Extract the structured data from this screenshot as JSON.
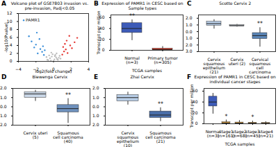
{
  "chart_data": [
    {
      "type": "scatter",
      "label": "A",
      "title": "Volcano plot of GSE7803 invasion vs. pre-invasion, Padj<0.05",
      "xlabel": "log2(fold change)",
      "ylabel": "-log10(Pvalue)",
      "xlim": [
        -4,
        4
      ],
      "xticks": [
        -4,
        -2,
        0,
        2,
        4
      ],
      "ylim": [
        0,
        12
      ],
      "yticks": [
        0,
        2,
        4,
        6,
        8,
        10,
        12
      ],
      "series": [
        {
          "color": "#bdbdbd",
          "x": [
            -0.6,
            -0.4,
            -0.2,
            0.1,
            0.3,
            0.5,
            0.7,
            -0.8,
            -0.3,
            0.2,
            0.6,
            -0.5,
            0.4,
            0.0,
            -0.1,
            0.8,
            -0.7,
            0.35,
            -0.25,
            0.15
          ],
          "y": [
            0.3,
            0.8,
            1.2,
            0.5,
            1.0,
            0.4,
            1.4,
            1.1,
            0.2,
            1.6,
            0.9,
            1.5,
            0.6,
            0.1,
            1.8,
            0.7,
            0.4,
            2.0,
            2.2,
            1.3
          ]
        },
        {
          "color": "#3b8fd9",
          "x": [
            -1.1,
            -1.3,
            -1.5,
            -1.8,
            -2.0,
            -2.2,
            -2.5,
            -1.2,
            -1.6,
            -2.8,
            -1.0,
            -1.9,
            -3.4
          ],
          "y": [
            1.6,
            2.4,
            3.1,
            2.0,
            4.2,
            3.5,
            5.0,
            3.8,
            5.6,
            6.3,
            2.8,
            7.2,
            10.3
          ]
        },
        {
          "color": "#e53935",
          "x": [
            1.0,
            1.2,
            1.4,
            1.6,
            1.9,
            2.1,
            2.4,
            1.1,
            1.5,
            2.7,
            1.3,
            1.8
          ],
          "y": [
            1.7,
            2.5,
            3.0,
            2.1,
            4.0,
            3.3,
            4.8,
            3.6,
            5.2,
            5.9,
            4.4,
            6.4
          ]
        }
      ],
      "annotations": [
        {
          "text": "PAMR1",
          "x": -3.4,
          "y": 10.3
        }
      ]
    },
    {
      "type": "box",
      "label": "B",
      "title": "Expression of PAMR1 in CESC based on Sample types",
      "xlabel": "TCGA samples",
      "ylabel": "Transcript per million",
      "categories": [
        "Normal\n(n=3)",
        "Primary tumor\n(n=305)"
      ],
      "boxes": [
        {
          "min": 18,
          "q1": 32,
          "median": 40,
          "q3": 50,
          "max": 56
        },
        {
          "min": 0,
          "q1": 0.5,
          "median": 1.5,
          "q3": 3,
          "max": 7
        }
      ],
      "colors": [
        "#3d5bb8",
        "#e8331f"
      ],
      "ylim": [
        0,
        65
      ],
      "yticks": [
        0,
        20,
        40,
        60
      ],
      "annotations": [
        {
          "text": "**",
          "category": "Normal\n(n=3)"
        }
      ]
    },
    {
      "type": "box",
      "label": "C",
      "title": "Scotto Cervix 2",
      "categories": [
        "Cervix squamous epithelium (21)",
        "Cervix uteri (2)",
        "Cervical squamous cell carcinoma (32)"
      ],
      "boxes": [
        {
          "min": 0.4,
          "q1": 0.9,
          "median": 1.2,
          "q3": 1.5,
          "max": 1.8
        },
        {
          "min": 0.7,
          "q1": 0.8,
          "median": 0.9,
          "q3": 1.0,
          "max": 1.1
        },
        {
          "min": -2.3,
          "q1": -1.1,
          "median": -0.6,
          "q3": -0.2,
          "max": 0.6
        }
      ],
      "colors": [
        "#b8cde6",
        "#d6dfea",
        "#5b86b8"
      ],
      "ylim": [
        -3,
        2.5
      ],
      "yticks": [
        -3,
        -2,
        -1,
        0,
        1,
        2
      ],
      "annotations": [
        {
          "text": "**",
          "category": "Cervical squamous cell carcinoma (32)"
        }
      ]
    },
    {
      "type": "box",
      "label": "D",
      "title": "Biewenga Cervix",
      "categories": [
        "Cervix uteri (5)",
        "Squamous cell carcinoma (40)"
      ],
      "boxes": [
        {
          "min": 0.6,
          "q1": 1.0,
          "median": 1.4,
          "q3": 1.6,
          "max": 1.8
        },
        {
          "min": -1.8,
          "q1": -0.6,
          "median": -0.2,
          "q3": 0.2,
          "max": 0.9
        }
      ],
      "colors": [
        "#c9d6e6",
        "#6f91bd"
      ],
      "ylim": [
        -2,
        2
      ],
      "yticks": [
        -2,
        -1,
        0,
        1,
        2
      ],
      "annotations": [
        {
          "text": "**",
          "category": "Squamous cell carcinoma (40)"
        }
      ]
    },
    {
      "type": "box",
      "label": "E",
      "title": "Zhai Cervix",
      "categories": [
        "Cervix squamous epithelium (10)",
        "Squamous cell carcinoma (21)"
      ],
      "boxes": [
        {
          "min": 0.2,
          "q1": 0.6,
          "median": 1.0,
          "q3": 1.3,
          "max": 1.6
        },
        {
          "min": -1.6,
          "q1": -1.2,
          "median": -0.9,
          "q3": -0.5,
          "max": -0.1
        }
      ],
      "colors": [
        "#b8cde6",
        "#4a6ea8"
      ],
      "ylim": [
        -2,
        2
      ],
      "yticks": [
        -2,
        -1,
        0,
        1,
        2
      ],
      "annotations": [
        {
          "text": "**",
          "category": "Squamous cell carcinoma (21)"
        }
      ]
    },
    {
      "type": "box",
      "label": "F",
      "title": "Expression of PAMR1 in CESC based on individual cancer stages",
      "xlabel": "TCGA samples",
      "ylabel": "Transcript per million",
      "categories": [
        "Normal\n(n=3)",
        "stage1\n(n=161)",
        "stage2\n(n=68)",
        "stage3\n(n=45)",
        "stage4\n(n=21)"
      ],
      "boxes": [
        {
          "min": 18,
          "q1": 32,
          "median": 40,
          "q3": 50,
          "max": 56
        },
        {
          "min": 0,
          "q1": 0.6,
          "median": 1.5,
          "q3": 3,
          "max": 7
        },
        {
          "min": 0,
          "q1": 0.5,
          "median": 1.2,
          "q3": 2.5,
          "max": 6
        },
        {
          "min": 0,
          "q1": 0.4,
          "median": 1.0,
          "q3": 2.2,
          "max": 5
        },
        {
          "min": 0,
          "q1": 0.3,
          "median": 0.8,
          "q3": 1.8,
          "max": 4
        }
      ],
      "colors": [
        "#3d5bb8",
        "#e8a33d",
        "#e8a33d",
        "#e8a33d",
        "#e8a33d"
      ],
      "ylim": [
        0,
        65
      ],
      "yticks": [
        0,
        20,
        40,
        60
      ],
      "annotations": [
        {
          "text": "*",
          "category": "stage1\n(n=161)"
        },
        {
          "text": "*",
          "category": "stage3\n(n=45)"
        }
      ]
    }
  ]
}
